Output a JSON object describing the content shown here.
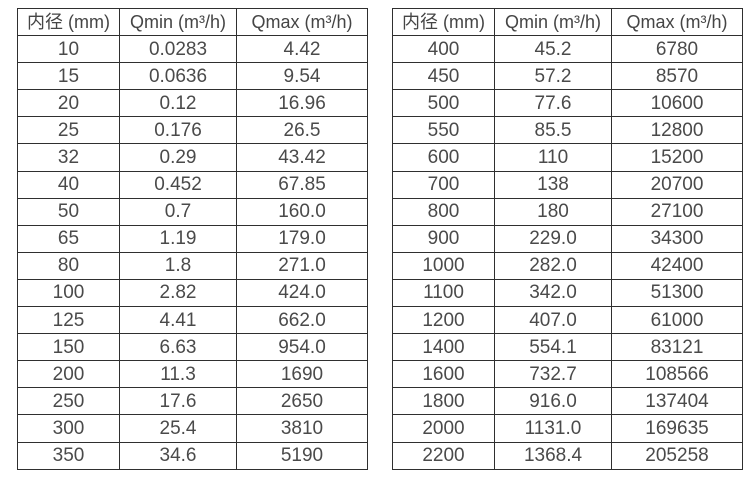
{
  "left_table": {
    "headers": [
      "内径 (mm)",
      "Qmin (m³/h)",
      "Qmax (m³/h)"
    ],
    "rows": [
      [
        "10",
        "0.0283",
        "4.42"
      ],
      [
        "15",
        "0.0636",
        "9.54"
      ],
      [
        "20",
        "0.12",
        "16.96"
      ],
      [
        "25",
        "0.176",
        "26.5"
      ],
      [
        "32",
        "0.29",
        "43.42"
      ],
      [
        "40",
        "0.452",
        "67.85"
      ],
      [
        "50",
        "0.7",
        "160.0"
      ],
      [
        "65",
        "1.19",
        "179.0"
      ],
      [
        "80",
        "1.8",
        "271.0"
      ],
      [
        "100",
        "2.82",
        "424.0"
      ],
      [
        "125",
        "4.41",
        "662.0"
      ],
      [
        "150",
        "6.63",
        "954.0"
      ],
      [
        "200",
        "11.3",
        "1690"
      ],
      [
        "250",
        "17.6",
        "2650"
      ],
      [
        "300",
        "25.4",
        "3810"
      ],
      [
        "350",
        "34.6",
        "5190"
      ]
    ]
  },
  "right_table": {
    "headers": [
      "内径 (mm)",
      "Qmin (m³/h)",
      "Qmax (m³/h)"
    ],
    "rows": [
      [
        "400",
        "45.2",
        "6780"
      ],
      [
        "450",
        "57.2",
        "8570"
      ],
      [
        "500",
        "77.6",
        "10600"
      ],
      [
        "550",
        "85.5",
        "12800"
      ],
      [
        "600",
        "110",
        "15200"
      ],
      [
        "700",
        "138",
        "20700"
      ],
      [
        "800",
        "180",
        "27100"
      ],
      [
        "900",
        "229.0",
        "34300"
      ],
      [
        "1000",
        "282.0",
        "42400"
      ],
      [
        "1100",
        "342.0",
        "51300"
      ],
      [
        "1200",
        "407.0",
        "61000"
      ],
      [
        "1400",
        "554.1",
        "83121"
      ],
      [
        "1600",
        "732.7",
        "108566"
      ],
      [
        "1800",
        "916.0",
        "137404"
      ],
      [
        "2000",
        "1131.0",
        "169635"
      ],
      [
        "2200",
        "1368.4",
        "205258"
      ]
    ]
  }
}
